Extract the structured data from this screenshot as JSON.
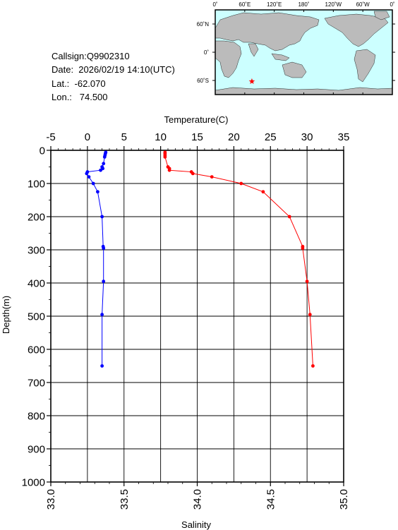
{
  "info": {
    "callsign": "Callsign:Q9902310",
    "date": "Date:  2026/02/19 14:10(UTC)",
    "lat": "Lat.:  -62.070",
    "lon": "Lon.:   74.500"
  },
  "map": {
    "lon_labels": [
      "0˚",
      "60˚E",
      "120˚E",
      "180˚",
      "120˚W",
      "60˚W",
      "0˚"
    ],
    "lat_labels": [
      "60˚N",
      "0˚",
      "60˚S"
    ],
    "ocean_color": "#ccffff",
    "land_color": "#bbbbbb",
    "marker": {
      "lon": 74.5,
      "lat": -62.07,
      "color": "#ff0000",
      "icon": "star-icon"
    }
  },
  "chart_data": {
    "type": "line",
    "temperature_axis": {
      "label": "Temperature(C)",
      "range": [
        -5,
        35
      ],
      "ticks": [
        -5,
        0,
        5,
        10,
        15,
        20,
        25,
        30,
        35
      ]
    },
    "salinity_axis": {
      "label": "Salinity",
      "range": [
        33.0,
        35.0
      ],
      "ticks": [
        "33.0",
        "33.5",
        "34.0",
        "34.5",
        "35.0"
      ]
    },
    "depth_axis": {
      "label": "Depth(m)",
      "range": [
        0,
        1000
      ],
      "ticks": [
        0,
        100,
        200,
        300,
        400,
        500,
        600,
        700,
        800,
        900,
        1000
      ]
    },
    "grid": true,
    "series": [
      {
        "color": "#0000ff",
        "axis": "temperature",
        "depth": [
          6,
          10,
          15,
          20,
          40,
          50,
          55,
          60,
          65,
          70,
          80,
          100,
          125,
          200,
          290,
          295,
          395,
          495,
          650
        ],
        "values": [
          2.5,
          2.45,
          2.4,
          2.35,
          2.2,
          2.0,
          2.1,
          1.8,
          0.0,
          -0.1,
          0.2,
          0.8,
          1.4,
          2.0,
          2.15,
          2.2,
          2.2,
          2.0,
          2.0
        ]
      },
      {
        "color": "#ff0000",
        "axis": "salinity",
        "depth": [
          6,
          10,
          15,
          20,
          50,
          55,
          60,
          65,
          70,
          80,
          100,
          125,
          200,
          290,
          295,
          395,
          495,
          650
        ],
        "values": [
          33.78,
          33.78,
          33.78,
          33.78,
          33.8,
          33.81,
          33.81,
          33.96,
          33.97,
          34.1,
          34.3,
          34.45,
          34.63,
          34.72,
          34.72,
          34.75,
          34.77,
          34.79
        ]
      }
    ]
  }
}
